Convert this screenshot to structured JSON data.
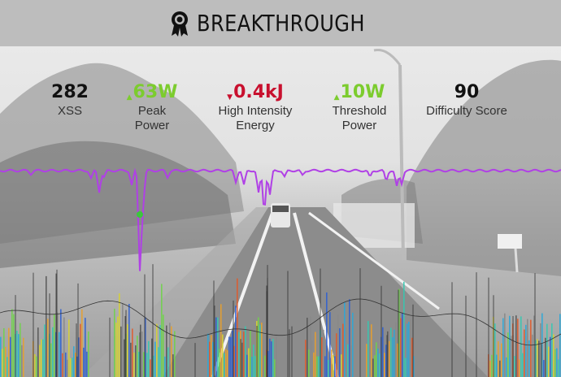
{
  "header": {
    "title": "BREAKTHROUGH",
    "icon": "award-badge-icon"
  },
  "colors": {
    "header_bg": "#bdbdbd",
    "up": "#7ccc2e",
    "down": "#c8102e",
    "neutral": "#111111",
    "power_line": "#b040e6",
    "peak_marker": "#3cc63c"
  },
  "metrics": [
    {
      "value": "282",
      "label": "XSS",
      "trend": "none"
    },
    {
      "arrow": "▲",
      "value": "63W",
      "label": "Peak Power",
      "trend": "up"
    },
    {
      "arrow": "▼",
      "value": "0.4kJ",
      "label": "High Intensity Energy",
      "trend": "down"
    },
    {
      "arrow": "▲",
      "value": "10W",
      "label": "Threshold Power",
      "trend": "up"
    },
    {
      "value": "90",
      "label": "Difficulty Score",
      "trend": "none"
    }
  ]
}
